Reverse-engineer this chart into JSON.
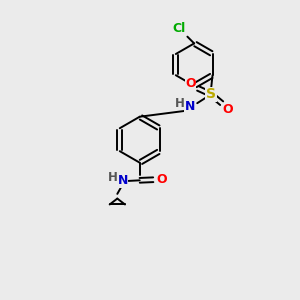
{
  "bg_color": "#ebebeb",
  "atom_colors": {
    "C": "#000000",
    "N": "#0000cc",
    "O": "#ff0000",
    "S": "#bbaa00",
    "Cl": "#00aa00",
    "H": "#555555"
  },
  "font_size": 8.5,
  "fig_size": [
    3.0,
    3.0
  ],
  "dpi": 100,
  "lw": 1.4
}
